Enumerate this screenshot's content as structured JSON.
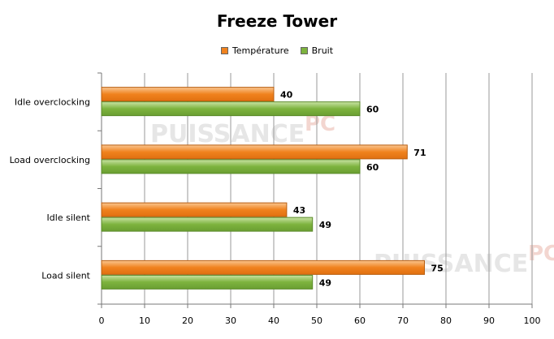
{
  "chart_data": {
    "type": "bar",
    "orientation": "horizontal",
    "title": "Freeze Tower",
    "categories": [
      "Idle overclocking",
      "Load overclocking",
      "Idle silent",
      "Load silent"
    ],
    "series": [
      {
        "name": "Température",
        "values": [
          40,
          71,
          43,
          75
        ],
        "color": "#F39A3E"
      },
      {
        "name": "Bruit",
        "values": [
          60,
          60,
          49,
          49
        ],
        "color": "#92C45A"
      }
    ],
    "xlim": [
      0,
      100
    ],
    "xticks": [
      0,
      10,
      20,
      30,
      40,
      50,
      60,
      70,
      80,
      90,
      100
    ],
    "grid": true,
    "legend_position": "top"
  },
  "watermark": {
    "text": "PUISSANCE",
    "suffix": "PC"
  }
}
